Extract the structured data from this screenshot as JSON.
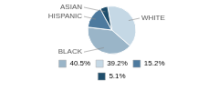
{
  "chart_data": {
    "type": "pie",
    "categories": [
      "WHITE",
      "BLACK",
      "HISPANIC",
      "ASIAN"
    ],
    "values": [
      39.2,
      40.5,
      15.2,
      5.1
    ],
    "colors": [
      "#c5d8e5",
      "#9ab5c8",
      "#4d7a9e",
      "#1e4d6b"
    ],
    "legend": "bottom",
    "annotations": [
      {
        "text": "40.5%",
        "color": "#9ab5c8"
      },
      {
        "text": "39.2%",
        "color": "#c5d8e5"
      },
      {
        "text": "15.2%",
        "color": "#4d7a9e"
      },
      {
        "text": "5.1%",
        "color": "#1e4d6b"
      }
    ]
  }
}
